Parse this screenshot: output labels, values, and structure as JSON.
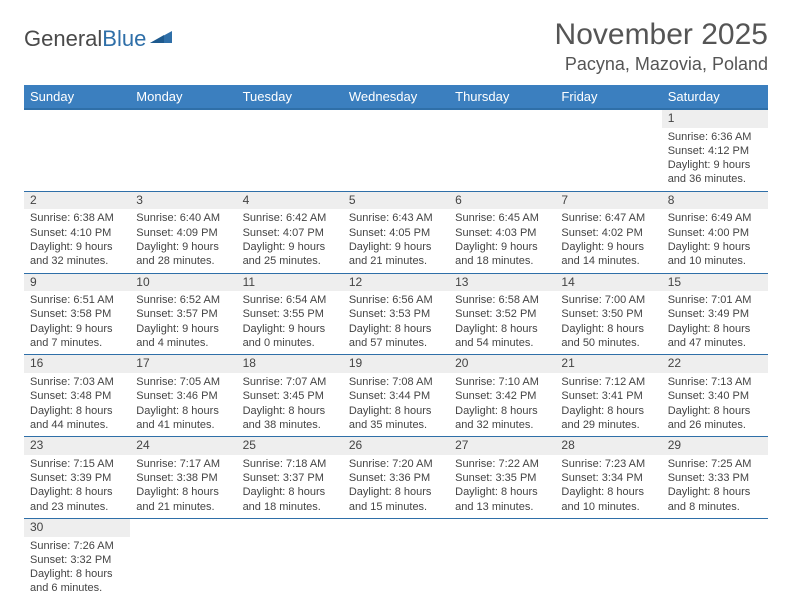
{
  "logo": {
    "part1": "General",
    "part2": "Blue"
  },
  "title": "November 2025",
  "location": "Pacyna, Mazovia, Poland",
  "colors": {
    "header_bg": "#3b7fbf",
    "header_border": "#2f6fa8",
    "row_divider": "#2f6fa8",
    "daynum_bg": "#eeeeee",
    "text": "#444444"
  },
  "weekdays": [
    "Sunday",
    "Monday",
    "Tuesday",
    "Wednesday",
    "Thursday",
    "Friday",
    "Saturday"
  ],
  "weeks": [
    [
      null,
      null,
      null,
      null,
      null,
      null,
      {
        "n": "1",
        "sr": "Sunrise: 6:36 AM",
        "ss": "Sunset: 4:12 PM",
        "d1": "Daylight: 9 hours",
        "d2": "and 36 minutes."
      }
    ],
    [
      {
        "n": "2",
        "sr": "Sunrise: 6:38 AM",
        "ss": "Sunset: 4:10 PM",
        "d1": "Daylight: 9 hours",
        "d2": "and 32 minutes."
      },
      {
        "n": "3",
        "sr": "Sunrise: 6:40 AM",
        "ss": "Sunset: 4:09 PM",
        "d1": "Daylight: 9 hours",
        "d2": "and 28 minutes."
      },
      {
        "n": "4",
        "sr": "Sunrise: 6:42 AM",
        "ss": "Sunset: 4:07 PM",
        "d1": "Daylight: 9 hours",
        "d2": "and 25 minutes."
      },
      {
        "n": "5",
        "sr": "Sunrise: 6:43 AM",
        "ss": "Sunset: 4:05 PM",
        "d1": "Daylight: 9 hours",
        "d2": "and 21 minutes."
      },
      {
        "n": "6",
        "sr": "Sunrise: 6:45 AM",
        "ss": "Sunset: 4:03 PM",
        "d1": "Daylight: 9 hours",
        "d2": "and 18 minutes."
      },
      {
        "n": "7",
        "sr": "Sunrise: 6:47 AM",
        "ss": "Sunset: 4:02 PM",
        "d1": "Daylight: 9 hours",
        "d2": "and 14 minutes."
      },
      {
        "n": "8",
        "sr": "Sunrise: 6:49 AM",
        "ss": "Sunset: 4:00 PM",
        "d1": "Daylight: 9 hours",
        "d2": "and 10 minutes."
      }
    ],
    [
      {
        "n": "9",
        "sr": "Sunrise: 6:51 AM",
        "ss": "Sunset: 3:58 PM",
        "d1": "Daylight: 9 hours",
        "d2": "and 7 minutes."
      },
      {
        "n": "10",
        "sr": "Sunrise: 6:52 AM",
        "ss": "Sunset: 3:57 PM",
        "d1": "Daylight: 9 hours",
        "d2": "and 4 minutes."
      },
      {
        "n": "11",
        "sr": "Sunrise: 6:54 AM",
        "ss": "Sunset: 3:55 PM",
        "d1": "Daylight: 9 hours",
        "d2": "and 0 minutes."
      },
      {
        "n": "12",
        "sr": "Sunrise: 6:56 AM",
        "ss": "Sunset: 3:53 PM",
        "d1": "Daylight: 8 hours",
        "d2": "and 57 minutes."
      },
      {
        "n": "13",
        "sr": "Sunrise: 6:58 AM",
        "ss": "Sunset: 3:52 PM",
        "d1": "Daylight: 8 hours",
        "d2": "and 54 minutes."
      },
      {
        "n": "14",
        "sr": "Sunrise: 7:00 AM",
        "ss": "Sunset: 3:50 PM",
        "d1": "Daylight: 8 hours",
        "d2": "and 50 minutes."
      },
      {
        "n": "15",
        "sr": "Sunrise: 7:01 AM",
        "ss": "Sunset: 3:49 PM",
        "d1": "Daylight: 8 hours",
        "d2": "and 47 minutes."
      }
    ],
    [
      {
        "n": "16",
        "sr": "Sunrise: 7:03 AM",
        "ss": "Sunset: 3:48 PM",
        "d1": "Daylight: 8 hours",
        "d2": "and 44 minutes."
      },
      {
        "n": "17",
        "sr": "Sunrise: 7:05 AM",
        "ss": "Sunset: 3:46 PM",
        "d1": "Daylight: 8 hours",
        "d2": "and 41 minutes."
      },
      {
        "n": "18",
        "sr": "Sunrise: 7:07 AM",
        "ss": "Sunset: 3:45 PM",
        "d1": "Daylight: 8 hours",
        "d2": "and 38 minutes."
      },
      {
        "n": "19",
        "sr": "Sunrise: 7:08 AM",
        "ss": "Sunset: 3:44 PM",
        "d1": "Daylight: 8 hours",
        "d2": "and 35 minutes."
      },
      {
        "n": "20",
        "sr": "Sunrise: 7:10 AM",
        "ss": "Sunset: 3:42 PM",
        "d1": "Daylight: 8 hours",
        "d2": "and 32 minutes."
      },
      {
        "n": "21",
        "sr": "Sunrise: 7:12 AM",
        "ss": "Sunset: 3:41 PM",
        "d1": "Daylight: 8 hours",
        "d2": "and 29 minutes."
      },
      {
        "n": "22",
        "sr": "Sunrise: 7:13 AM",
        "ss": "Sunset: 3:40 PM",
        "d1": "Daylight: 8 hours",
        "d2": "and 26 minutes."
      }
    ],
    [
      {
        "n": "23",
        "sr": "Sunrise: 7:15 AM",
        "ss": "Sunset: 3:39 PM",
        "d1": "Daylight: 8 hours",
        "d2": "and 23 minutes."
      },
      {
        "n": "24",
        "sr": "Sunrise: 7:17 AM",
        "ss": "Sunset: 3:38 PM",
        "d1": "Daylight: 8 hours",
        "d2": "and 21 minutes."
      },
      {
        "n": "25",
        "sr": "Sunrise: 7:18 AM",
        "ss": "Sunset: 3:37 PM",
        "d1": "Daylight: 8 hours",
        "d2": "and 18 minutes."
      },
      {
        "n": "26",
        "sr": "Sunrise: 7:20 AM",
        "ss": "Sunset: 3:36 PM",
        "d1": "Daylight: 8 hours",
        "d2": "and 15 minutes."
      },
      {
        "n": "27",
        "sr": "Sunrise: 7:22 AM",
        "ss": "Sunset: 3:35 PM",
        "d1": "Daylight: 8 hours",
        "d2": "and 13 minutes."
      },
      {
        "n": "28",
        "sr": "Sunrise: 7:23 AM",
        "ss": "Sunset: 3:34 PM",
        "d1": "Daylight: 8 hours",
        "d2": "and 10 minutes."
      },
      {
        "n": "29",
        "sr": "Sunrise: 7:25 AM",
        "ss": "Sunset: 3:33 PM",
        "d1": "Daylight: 8 hours",
        "d2": "and 8 minutes."
      }
    ],
    [
      {
        "n": "30",
        "sr": "Sunrise: 7:26 AM",
        "ss": "Sunset: 3:32 PM",
        "d1": "Daylight: 8 hours",
        "d2": "and 6 minutes."
      },
      null,
      null,
      null,
      null,
      null,
      null
    ]
  ]
}
